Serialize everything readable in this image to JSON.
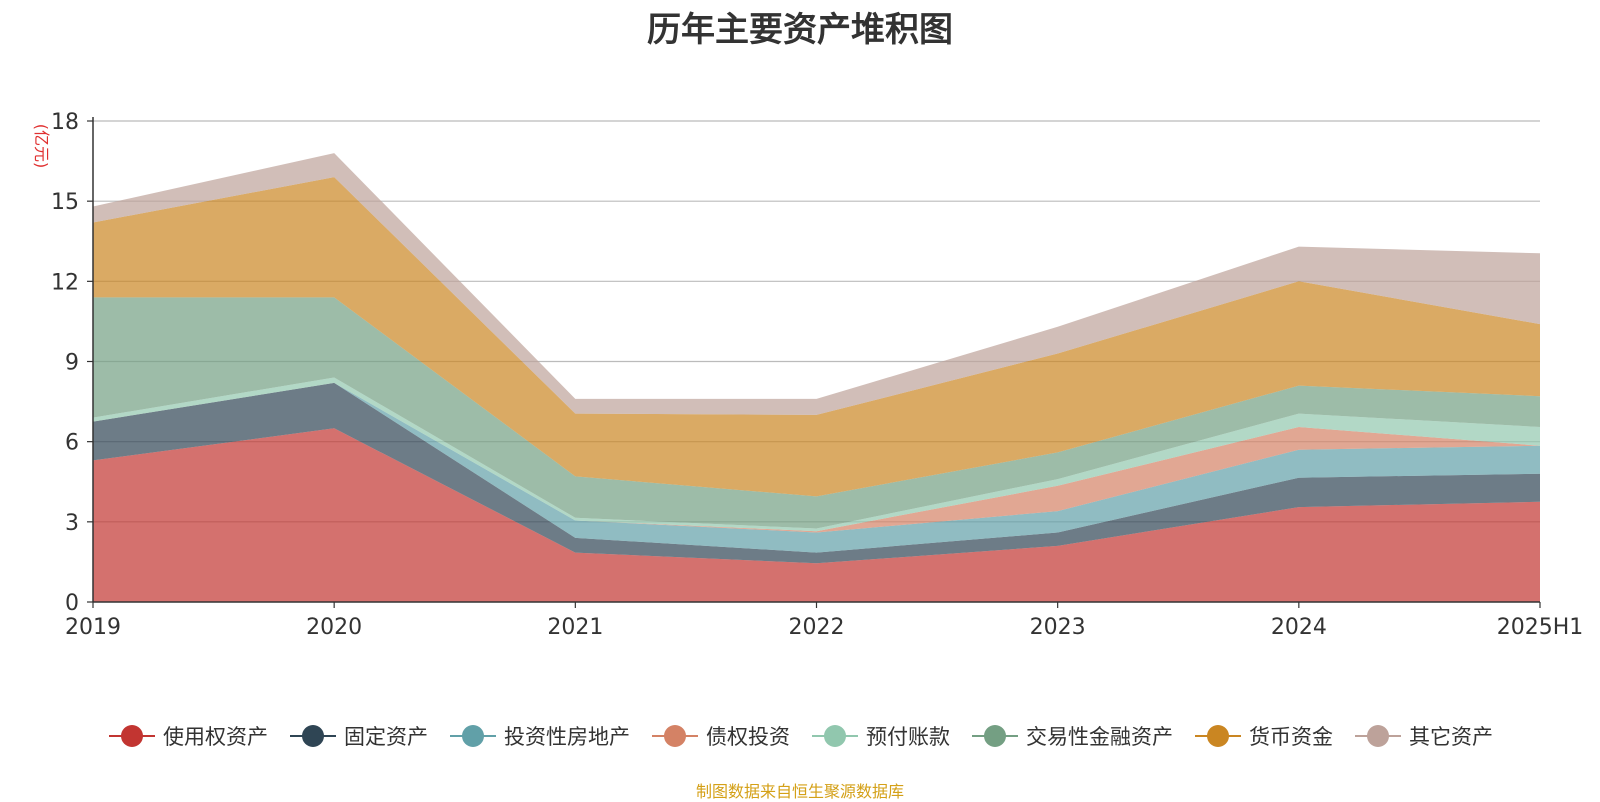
{
  "chart_data": {
    "type": "area",
    "stacked": true,
    "title": "历年主要资产堆积图",
    "ylabel": "(亿元)",
    "xlabel": "",
    "ylim": [
      0,
      18
    ],
    "yticks": [
      0,
      3,
      6,
      9,
      12,
      15,
      18
    ],
    "categories": [
      "2019",
      "2020",
      "2021",
      "2022",
      "2023",
      "2024",
      "2025H1"
    ],
    "grid": true,
    "legend_position": "bottom",
    "series": [
      {
        "name": "使用权资产",
        "color": "#c23531",
        "values": [
          5.3,
          6.5,
          1.85,
          1.45,
          2.1,
          3.55,
          3.75
        ]
      },
      {
        "name": "固定资产",
        "color": "#2f4554",
        "values": [
          1.45,
          1.7,
          0.55,
          0.4,
          0.5,
          1.1,
          1.05
        ]
      },
      {
        "name": "投资性房地产",
        "color": "#61a0a8",
        "values": [
          0.0,
          0.0,
          0.65,
          0.75,
          0.8,
          1.05,
          1.05
        ]
      },
      {
        "name": "债权投资",
        "color": "#d48265",
        "values": [
          0.0,
          0.0,
          0.0,
          0.05,
          0.95,
          0.85,
          0.0
        ]
      },
      {
        "name": "预付账款",
        "color": "#91c7ae",
        "values": [
          0.15,
          0.2,
          0.1,
          0.1,
          0.25,
          0.5,
          0.7
        ]
      },
      {
        "name": "交易性金融资产",
        "color": "#749f83",
        "values": [
          4.5,
          3.0,
          1.55,
          1.2,
          1.0,
          1.05,
          1.15
        ]
      },
      {
        "name": "货币资金",
        "color": "#ca8622",
        "values": [
          2.8,
          4.5,
          2.35,
          3.05,
          3.7,
          3.9,
          2.7
        ]
      },
      {
        "name": "其它资产",
        "color": "#bda29a",
        "values": [
          0.6,
          0.9,
          0.55,
          0.6,
          1.0,
          1.3,
          2.65
        ]
      }
    ]
  },
  "source_note": "制图数据来自恒生聚源数据库",
  "source_note_color": "#d4a017",
  "ylabel_color": "#e03030"
}
